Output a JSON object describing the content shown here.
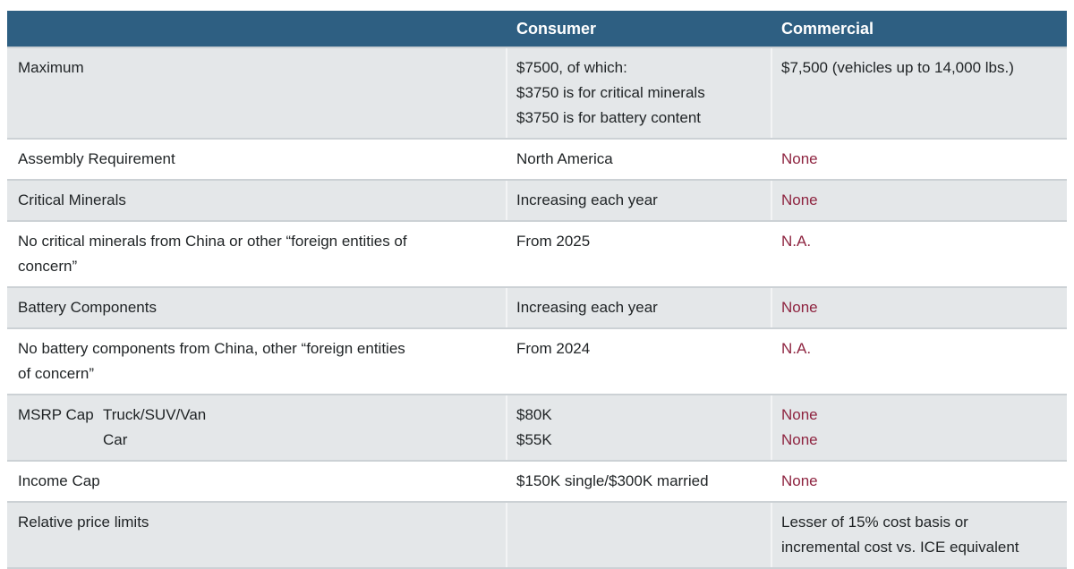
{
  "colors": {
    "header_bg": "#2e5f82",
    "header_text": "#ffffff",
    "row_alt_bg": "#e4e7e9",
    "row_bg": "#ffffff",
    "text": "#1f2325",
    "accent": "#8e2440",
    "separator": "#ccd1d5",
    "page_bg": "#ffffff"
  },
  "table": {
    "columns": [
      "",
      "Consumer",
      "Commercial"
    ],
    "rows": [
      {
        "label": "Maximum",
        "consumer": "$7500, of which:\n$3750 is for critical minerals\n$3750 is for battery content",
        "commercial": "$7,500 (vehicles up to 14,000 lbs.)",
        "commercial_accent": false
      },
      {
        "label": "Assembly Requirement",
        "consumer": "North America",
        "commercial": "None",
        "commercial_accent": true
      },
      {
        "label": "Critical Minerals",
        "consumer": "Increasing each year",
        "commercial": "None",
        "commercial_accent": true
      },
      {
        "label": "No critical minerals from China or other “foreign entities of\nconcern”",
        "consumer": "From 2025",
        "commercial": "N.A.",
        "commercial_accent": true
      },
      {
        "label": "Battery Components",
        "consumer": "Increasing each year",
        "commercial": "None",
        "commercial_accent": true
      },
      {
        "label": "No battery components from China, other “foreign entities\nof concern”",
        "consumer": "From 2024",
        "commercial": "N.A.",
        "commercial_accent": true
      },
      {
        "label": "MSRP Cap",
        "sublabel": "Truck/SUV/Van\nCar",
        "consumer": "$80K\n$55K",
        "commercial": "None\nNone",
        "commercial_accent": true
      },
      {
        "label": "Income Cap",
        "consumer": "$150K single/$300K married",
        "commercial": "None",
        "commercial_accent": true
      },
      {
        "label": "Relative price limits",
        "consumer": "",
        "commercial": "Lesser of 15% cost basis or\nincremental cost vs. ICE equivalent",
        "commercial_accent": false
      }
    ]
  },
  "chart_data": {
    "type": "table",
    "title": "",
    "columns": [
      "",
      "Consumer",
      "Commercial"
    ],
    "rows": [
      [
        "Maximum",
        "$7500, of which: $3750 is for critical minerals, $3750 is for battery content",
        "$7,500 (vehicles up to 14,000 lbs.)"
      ],
      [
        "Assembly Requirement",
        "North America",
        "None"
      ],
      [
        "Critical Minerals",
        "Increasing each year",
        "None"
      ],
      [
        "No critical minerals from China or other “foreign entities of concern”",
        "From 2025",
        "N.A."
      ],
      [
        "Battery Components",
        "Increasing each year",
        "None"
      ],
      [
        "No battery components from China, other “foreign entities of concern”",
        "From 2024",
        "N.A."
      ],
      [
        "MSRP Cap — Truck/SUV/Van; Car",
        "$80K; $55K",
        "None; None"
      ],
      [
        "Income Cap",
        "$150K single/$300K married",
        "None"
      ],
      [
        "Relative price limits",
        "",
        "Lesser of 15% cost basis or incremental cost vs. ICE equivalent"
      ]
    ],
    "layout": {
      "alternating_row_shading": true,
      "header_position": "top"
    }
  }
}
